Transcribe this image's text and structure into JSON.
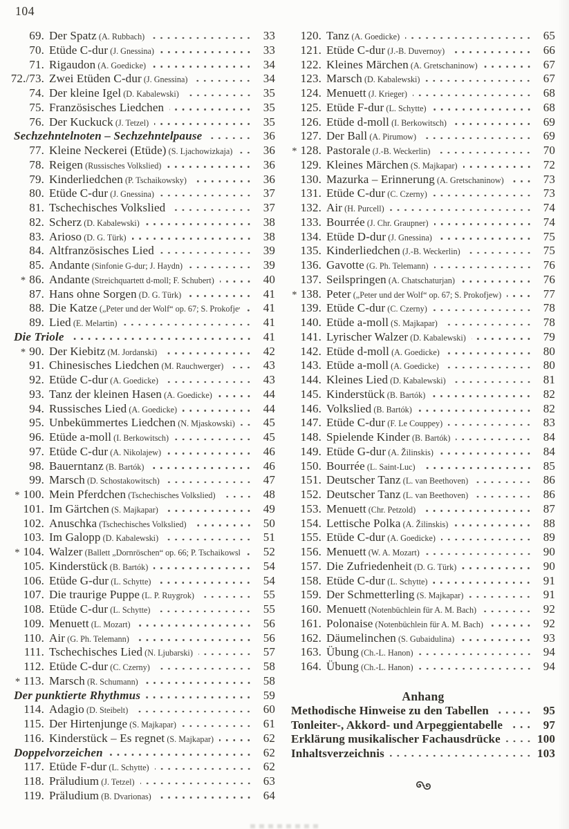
{
  "page_number": "104",
  "colors": {
    "ink": "#323029",
    "paper": "#fcfcfa",
    "dots": "#55534d"
  },
  "left_column": [
    {
      "n": "69.",
      "t": "Der Spatz",
      "c": "(A. Rubbach)",
      "p": "33"
    },
    {
      "n": "70.",
      "t": "Etüde C-dur",
      "c": "(J. Gnessina)",
      "p": "33"
    },
    {
      "n": "71.",
      "t": "Rigaudon",
      "c": "(A. Goedicke)",
      "p": "34"
    },
    {
      "n": "72./73.",
      "t": "Zwei Etüden C-dur",
      "c": "(J. Gnessina)",
      "p": "34"
    },
    {
      "n": "74.",
      "t": "Der kleine Igel",
      "c": "(D. Kabalewski)",
      "p": "35"
    },
    {
      "n": "75.",
      "t": "Französisches Liedchen",
      "p": "35"
    },
    {
      "n": "76.",
      "t": "Der Kuckuck",
      "c": "(J. Tetzel)",
      "p": "35"
    },
    {
      "h": true,
      "t": "Sechzehntelnoten – Sechzehntelpause",
      "p": "36"
    },
    {
      "n": "77.",
      "t": "Kleine Neckerei (Etüde)",
      "c": "(S. Ljachowizkaja)",
      "p": "36"
    },
    {
      "n": "78.",
      "t": "Reigen",
      "c": "(Russisches Volkslied)",
      "p": "36"
    },
    {
      "n": "79.",
      "t": "Kinderliedchen",
      "c": "(P. Tschaikowsky)",
      "p": "36"
    },
    {
      "n": "80.",
      "t": "Etüde C-dur",
      "c": "(J. Gnessina)",
      "p": "37"
    },
    {
      "n": "81.",
      "t": "Tschechisches Volkslied",
      "p": "37"
    },
    {
      "n": "82.",
      "t": "Scherz",
      "c": "(D. Kabalewski)",
      "p": "38"
    },
    {
      "n": "83.",
      "t": "Arioso",
      "c": "(D. G. Türk)",
      "p": "38"
    },
    {
      "n": "84.",
      "t": "Altfranzösisches Lied",
      "p": "39"
    },
    {
      "n": "85.",
      "t": "Andante",
      "c": "(Sinfonie G-dur; J. Haydn)",
      "p": "39"
    },
    {
      "s": true,
      "n": "86.",
      "t": "Andante",
      "c": "(Streichquartett d-moll; F. Schubert)",
      "p": "40"
    },
    {
      "n": "87.",
      "t": "Hans ohne Sorgen",
      "c": "(D. G. Türk)",
      "p": "41"
    },
    {
      "n": "88.",
      "t": "Die Katze",
      "c": "(„Peter und der Wolf“ op. 67; S. Prokofjew)",
      "p": "41"
    },
    {
      "n": "89.",
      "t": "Lied",
      "c": "(E. Melartin)",
      "p": "41"
    },
    {
      "h": true,
      "t": "Die Triole",
      "p": "41"
    },
    {
      "s": true,
      "n": "90.",
      "t": "Der Kiebitz",
      "c": "(M. Jordanski)",
      "p": "42"
    },
    {
      "n": "91.",
      "t": "Chinesisches Liedchen",
      "c": "(M. Rauchwerger)",
      "p": "43"
    },
    {
      "n": "92.",
      "t": "Etüde C-dur",
      "c": "(A. Goedicke)",
      "p": "43"
    },
    {
      "n": "93.",
      "t": "Tanz der kleinen Hasen",
      "c": "(A. Goedicke)",
      "p": "44"
    },
    {
      "n": "94.",
      "t": "Russisches Lied",
      "c": "(A. Goedicke)",
      "p": "44"
    },
    {
      "n": "95.",
      "t": "Unbekümmertes Liedchen",
      "c": "(N. Mjaskowski)",
      "p": "45"
    },
    {
      "n": "96.",
      "t": "Etüde a-moll",
      "c": "(I. Berkowitsch)",
      "p": "45"
    },
    {
      "n": "97.",
      "t": "Etüde C-dur",
      "c": "(A. Nikolajew)",
      "p": "46"
    },
    {
      "n": "98.",
      "t": "Bauerntanz",
      "c": "(B. Bartók)",
      "p": "46"
    },
    {
      "n": "99.",
      "t": "Marsch",
      "c": "(D. Schostakowitsch)",
      "p": "47"
    },
    {
      "s": true,
      "n": "100.",
      "t": "Mein Pferdchen",
      "c": "(Tschechisches Volkslied)",
      "p": "48"
    },
    {
      "n": "101.",
      "t": "Im Gärtchen",
      "c": "(S. Majkapar)",
      "p": "49"
    },
    {
      "n": "102.",
      "t": "Anuschka",
      "c": "(Tschechisches Volkslied)",
      "p": "50"
    },
    {
      "n": "103.",
      "t": "Im Galopp",
      "c": "(D. Kabalewski)",
      "p": "51"
    },
    {
      "s": true,
      "n": "104.",
      "t": "Walzer",
      "c": "(Ballett „Dornröschen“ op. 66; P. Tschaikowsky)",
      "p": "52"
    },
    {
      "n": "105.",
      "t": "Kinderstück",
      "c": "(B. Bartók)",
      "p": "54"
    },
    {
      "n": "106.",
      "t": "Etüde G-dur",
      "c": "(L. Schytte)",
      "p": "54"
    },
    {
      "n": "107.",
      "t": "Die traurige Puppe",
      "c": "(L. P. Ruygrok)",
      "p": "55"
    },
    {
      "n": "108.",
      "t": "Etüde C-dur",
      "c": "(L. Schytte)",
      "p": "55"
    },
    {
      "n": "109.",
      "t": "Menuett",
      "c": "(L. Mozart)",
      "p": "56"
    },
    {
      "n": "110.",
      "t": "Air",
      "c": "(G. Ph. Telemann)",
      "p": "56"
    },
    {
      "n": "111.",
      "t": "Tschechisches Lied",
      "c": "(N. Ljubarski)",
      "p": "57"
    },
    {
      "n": "112.",
      "t": "Etüde C-dur",
      "c": "(C. Czerny)",
      "p": "58"
    },
    {
      "s": true,
      "n": "113.",
      "t": "Marsch",
      "c": "(R. Schumann)",
      "p": "58"
    },
    {
      "h": true,
      "t": "Der punktierte Rhythmus",
      "p": "59"
    },
    {
      "n": "114.",
      "t": "Adagio",
      "c": "(D. Steibelt)",
      "p": "60"
    },
    {
      "n": "115.",
      "t": "Der Hirtenjunge",
      "c": "(S. Majkapar)",
      "p": "61"
    },
    {
      "n": "116.",
      "t": "Kinderstück – Es regnet",
      "c": "(S. Majkapar)",
      "p": "62"
    },
    {
      "h": true,
      "t": "Doppelvorzeichen",
      "p": "62"
    },
    {
      "n": "117.",
      "t": "Etüde F-dur",
      "c": "(L. Schytte)",
      "p": "62"
    },
    {
      "n": "118.",
      "t": "Präludium",
      "c": "(J. Tetzel)",
      "p": "63"
    },
    {
      "n": "119.",
      "t": "Präludium",
      "c": "(B. Dvarionas)",
      "p": "64"
    }
  ],
  "right_column": [
    {
      "n": "120.",
      "t": "Tanz",
      "c": "(A. Goedicke)",
      "p": "65"
    },
    {
      "n": "121.",
      "t": "Etüde C-dur",
      "c": "(J.-B. Duvernoy)",
      "p": "66"
    },
    {
      "n": "122.",
      "t": "Kleines Märchen",
      "c": "(A. Gretschaninow)",
      "p": "67"
    },
    {
      "n": "123.",
      "t": "Marsch",
      "c": "(D. Kabalewski)",
      "p": "67"
    },
    {
      "n": "124.",
      "t": "Menuett",
      "c": "(J. Krieger)",
      "p": "68"
    },
    {
      "n": "125.",
      "t": "Etüde F-dur",
      "c": "(L. Schytte)",
      "p": "68"
    },
    {
      "n": "126.",
      "t": "Etüde d-moll",
      "c": "(I. Berkowitsch)",
      "p": "69"
    },
    {
      "n": "127.",
      "t": "Der Ball",
      "c": "(A. Pirumow)",
      "p": "69"
    },
    {
      "s": true,
      "n": "128.",
      "t": "Pastorale",
      "c": "(J.-B. Weckerlin)",
      "p": "70"
    },
    {
      "n": "129.",
      "t": "Kleines Märchen",
      "c": "(S. Majkapar)",
      "p": "72"
    },
    {
      "n": "130.",
      "t": "Mazurka – Erinnerung",
      "c": "(A. Gretschaninow)",
      "p": "73"
    },
    {
      "n": "131.",
      "t": "Etüde C-dur",
      "c": "(C. Czerny)",
      "p": "73"
    },
    {
      "n": "132.",
      "t": "Air",
      "c": "(H. Purcell)",
      "p": "74"
    },
    {
      "n": "133.",
      "t": "Bourrée",
      "c": "(J. Chr. Graupner)",
      "p": "74"
    },
    {
      "n": "134.",
      "t": "Etüde D-dur",
      "c": "(J. Gnessina)",
      "p": "75"
    },
    {
      "n": "135.",
      "t": "Kinderliedchen",
      "c": "(J.-B. Weckerlin)",
      "p": "75"
    },
    {
      "n": "136.",
      "t": "Gavotte",
      "c": "(G. Ph. Telemann)",
      "p": "76"
    },
    {
      "n": "137.",
      "t": "Seilspringen",
      "c": "(A. Chatschaturjan)",
      "p": "76"
    },
    {
      "s": true,
      "n": "138.",
      "t": "Peter",
      "c": "(„Peter und der Wolf“ op. 67; S. Prokofjew)",
      "p": "77"
    },
    {
      "n": "139.",
      "t": "Etüde C-dur",
      "c": "(C. Czerny)",
      "p": "78"
    },
    {
      "n": "140.",
      "t": "Etüde a-moll",
      "c": "(S. Majkapar)",
      "p": "78"
    },
    {
      "n": "141.",
      "t": "Lyrischer Walzer",
      "c": "(D. Kabalewski)",
      "p": "79"
    },
    {
      "n": "142.",
      "t": "Etüde d-moll",
      "c": "(A. Goedicke)",
      "p": "80"
    },
    {
      "n": "143.",
      "t": "Etüde a-moll",
      "c": "(A. Goedicke)",
      "p": "80"
    },
    {
      "n": "144.",
      "t": "Kleines Lied",
      "c": "(D. Kabalewski)",
      "p": "81"
    },
    {
      "n": "145.",
      "t": "Kinderstück",
      "c": "(B. Bartók)",
      "p": "82"
    },
    {
      "n": "146.",
      "t": "Volkslied",
      "c": "(B. Bartók)",
      "p": "82"
    },
    {
      "n": "147.",
      "t": "Etüde C-dur",
      "c": "(F. Le Couppey)",
      "p": "83"
    },
    {
      "n": "148.",
      "t": "Spielende Kinder",
      "c": "(B. Bartók)",
      "p": "84"
    },
    {
      "n": "149.",
      "t": "Etüde G-dur",
      "c": "(A. Žilinskis)",
      "p": "84"
    },
    {
      "n": "150.",
      "t": "Bourrée",
      "c": "(L. Saint-Luc)",
      "p": "85"
    },
    {
      "n": "151.",
      "t": "Deutscher Tanz",
      "c": "(L. van Beethoven)",
      "p": "86"
    },
    {
      "n": "152.",
      "t": "Deutscher Tanz",
      "c": "(L. van Beethoven)",
      "p": "86"
    },
    {
      "n": "153.",
      "t": "Menuett",
      "c": "(Chr. Petzold)",
      "p": "87"
    },
    {
      "n": "154.",
      "t": "Lettische Polka",
      "c": "(A. Žilinskis)",
      "p": "88"
    },
    {
      "n": "155.",
      "t": "Etüde C-dur",
      "c": "(A. Goedicke)",
      "p": "89"
    },
    {
      "n": "156.",
      "t": "Menuett",
      "c": "(W. A. Mozart)",
      "p": "90"
    },
    {
      "n": "157.",
      "t": "Die Zufriedenheit",
      "c": "(D. G. Türk)",
      "p": "90"
    },
    {
      "n": "158.",
      "t": "Etüde C-dur",
      "c": "(L. Schytte)",
      "p": "91"
    },
    {
      "n": "159.",
      "t": "Der Schmetterling",
      "c": "(S. Majkapar)",
      "p": "91"
    },
    {
      "n": "160.",
      "t": "Menuett",
      "c": "(Notenbüchlein für A. M. Bach)",
      "p": "92"
    },
    {
      "n": "161.",
      "t": "Polonaise",
      "c": "(Notenbüchlein für A. M. Bach)",
      "p": "92"
    },
    {
      "n": "162.",
      "t": "Däumelinchen",
      "c": "(S. Gubaidulina)",
      "p": "93"
    },
    {
      "n": "163.",
      "t": "Übung",
      "c": "(Ch.-L. Hanon)",
      "p": "94"
    },
    {
      "n": "164.",
      "t": "Übung",
      "c": "(Ch.-L. Hanon)",
      "p": "94"
    }
  ],
  "anhang": {
    "title": "Anhang",
    "items": [
      {
        "t": "Methodische Hinweise zu den Tabellen",
        "p": "95"
      },
      {
        "t": "Tonleiter-, Akkord- und Arpeggientabelle",
        "p": "97"
      },
      {
        "t": "Erklärung musikalischer Fachausdrücke",
        "p": "100"
      },
      {
        "t": "Inhaltsverzeichnis",
        "p": "103"
      }
    ]
  },
  "ornament": "end-scroll-ornament"
}
